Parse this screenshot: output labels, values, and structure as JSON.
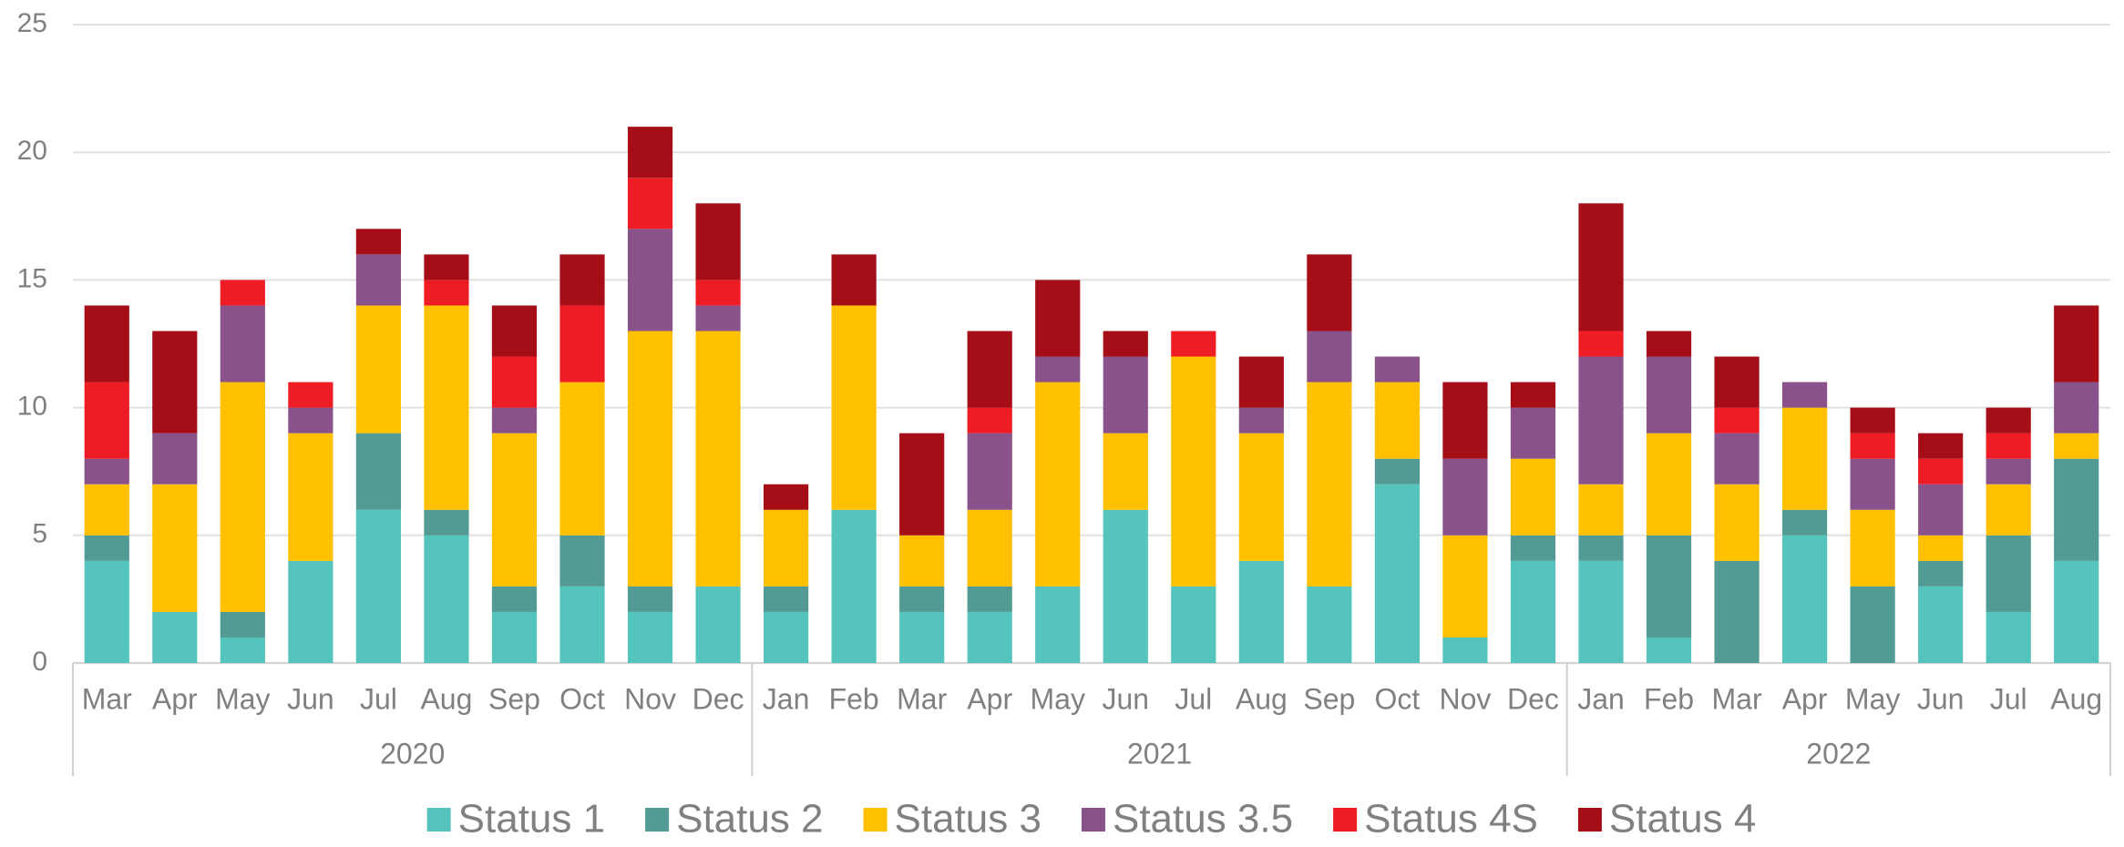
{
  "chart_data": {
    "type": "stacked_bar",
    "categories": [
      "Mar",
      "Apr",
      "May",
      "Jun",
      "Jul",
      "Aug",
      "Sep",
      "Oct",
      "Nov",
      "Dec",
      "Jan",
      "Feb",
      "Mar",
      "Apr",
      "May",
      "Jun",
      "Jul",
      "Aug",
      "Sep",
      "Oct",
      "Nov",
      "Dec",
      "Jan",
      "Feb",
      "Mar",
      "Apr",
      "May",
      "Jun",
      "Jul",
      "Aug"
    ],
    "groups": [
      "2020",
      "2021",
      "2022"
    ],
    "group_sizes": [
      10,
      12,
      8
    ],
    "series": [
      {
        "name": "Status 1",
        "color": "#54c4bc",
        "values": [
          4,
          2,
          1,
          4,
          6,
          5,
          2,
          3,
          2,
          3,
          2,
          6,
          2,
          2,
          3,
          6,
          3,
          4,
          3,
          7,
          1,
          4,
          4,
          1,
          0,
          5,
          0,
          3,
          2,
          4
        ]
      },
      {
        "name": "Status 2",
        "color": "#529b94",
        "values": [
          1,
          0,
          1,
          0,
          3,
          1,
          1,
          2,
          1,
          0,
          1,
          0,
          1,
          1,
          0,
          0,
          0,
          0,
          0,
          1,
          0,
          1,
          1,
          4,
          4,
          1,
          3,
          1,
          3,
          4
        ]
      },
      {
        "name": "Status 3",
        "color": "#ffc000",
        "values": [
          2,
          5,
          9,
          5,
          5,
          8,
          6,
          6,
          10,
          10,
          3,
          8,
          2,
          3,
          8,
          3,
          9,
          5,
          8,
          3,
          4,
          3,
          2,
          4,
          3,
          4,
          3,
          1,
          2,
          1
        ]
      },
      {
        "name": "Status 3.5",
        "color": "#8a528a",
        "values": [
          1,
          2,
          3,
          1,
          2,
          0,
          1,
          0,
          4,
          1,
          0,
          0,
          0,
          3,
          1,
          3,
          0,
          1,
          2,
          1,
          3,
          2,
          5,
          3,
          2,
          1,
          2,
          2,
          1,
          2
        ]
      },
      {
        "name": "Status 4S",
        "color": "#ee1c25",
        "values": [
          3,
          0,
          1,
          1,
          0,
          1,
          2,
          3,
          2,
          1,
          0,
          0,
          0,
          1,
          0,
          0,
          1,
          0,
          0,
          0,
          0,
          0,
          1,
          0,
          1,
          0,
          1,
          1,
          1,
          0
        ]
      },
      {
        "name": "Status 4",
        "color": "#a50e17",
        "values": [
          3,
          4,
          0,
          0,
          1,
          1,
          2,
          2,
          2,
          3,
          1,
          2,
          4,
          3,
          3,
          1,
          0,
          2,
          3,
          0,
          3,
          1,
          5,
          1,
          2,
          0,
          1,
          1,
          1,
          3
        ]
      }
    ],
    "ylim": [
      0,
      25
    ],
    "yticks": [
      0,
      5,
      10,
      15,
      20,
      25
    ],
    "grid": true,
    "legend": "bottom"
  }
}
